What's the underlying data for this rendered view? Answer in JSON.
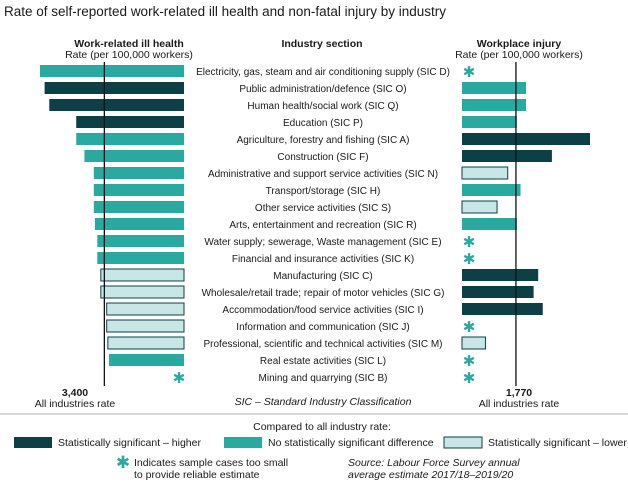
{
  "chart_data": {
    "type": "bar",
    "title": "Rate of self-reported work-related ill health and non-fatal injury by industry",
    "center_header": "Industry section",
    "left_panel": {
      "title": "Work-related ill health",
      "subtitle": "Rate (per 100,000 workers)",
      "reference_value": 3400,
      "reference_label": "3,400",
      "reference_caption": "All industries rate",
      "xlim": [
        0,
        7000
      ]
    },
    "right_panel": {
      "title": "Workplace injury",
      "subtitle": "Rate (per 100,000 workers)",
      "reference_value": 1770,
      "reference_label": "1,770",
      "reference_caption": "All industries rate",
      "xlim": [
        0,
        4200
      ]
    },
    "sic_note": "SIC – Standard Industry Classification",
    "categories": [
      "Electricity, gas, steam and air conditioning supply (SIC D)",
      "Public administration/defence (SIC O)",
      "Human health/social work (SIC Q)",
      "Education (SIC P)",
      "Agriculture, forestry and fishing (SIC A)",
      "Construction (SIC F)",
      "Administrative and support service activities (SIC N)",
      "Transport/storage (SIC H)",
      "Other service activities (SIC S)",
      "Arts, entertainment and recreation (SIC R)",
      "Water supply; sewerage, Waste management (SIC E)",
      "Financial and insurance activities (SIC K)",
      "Manufacturing (SIC C)",
      "Wholesale/retail trade; repair of motor vehicles (SIC G)",
      "Accommodation/food service activities (SIC I)",
      "Information and communication (SIC J)",
      "Professional, scientific and technical activities (SIC M)",
      "Real estate activities (SIC L)",
      "Mining and quarrying (SIC B)"
    ],
    "series": [
      {
        "name": "Work-related ill health",
        "values": [
          6150,
          5950,
          5750,
          4600,
          4600,
          4250,
          3850,
          3850,
          3850,
          3800,
          3700,
          3700,
          3550,
          3550,
          3300,
          3300,
          3250,
          3200,
          null
        ],
        "status": [
          "nsd",
          "higher",
          "higher",
          "higher",
          "nsd",
          "nsd",
          "nsd",
          "nsd",
          "nsd",
          "nsd",
          "nsd",
          "nsd",
          "lower",
          "lower",
          "lower",
          "lower",
          "lower",
          "nsd",
          "star"
        ]
      },
      {
        "name": "Workplace injury",
        "values": [
          null,
          2100,
          2100,
          1800,
          4200,
          2950,
          1500,
          1920,
          1150,
          1800,
          null,
          null,
          2500,
          2350,
          2650,
          null,
          770,
          null,
          null
        ],
        "status": [
          "star",
          "nsd",
          "nsd",
          "nsd",
          "higher",
          "higher",
          "lower",
          "nsd",
          "lower",
          "nsd",
          "star",
          "star",
          "higher",
          "higher",
          "higher",
          "star",
          "lower",
          "star",
          "star"
        ]
      }
    ],
    "legend": {
      "heading": "Compared to all industry rate:",
      "items": [
        {
          "key": "higher",
          "label": "Statistically significant – higher",
          "color": "#0d3f47"
        },
        {
          "key": "nsd",
          "label": "No statistically significant difference",
          "color": "#2aa9a0"
        },
        {
          "key": "lower",
          "label": "Statistically significant – lower",
          "color": "#c8e6e6"
        }
      ],
      "star_note": [
        "Indicates sample cases too small",
        "to provide reliable estimate"
      ]
    },
    "source": [
      "Source: Labour Force Survey annual",
      "average estimate 2017/18–2019/20"
    ],
    "colors": {
      "higher": "#0d3f47",
      "nsd": "#2aa9a0",
      "lower": "#c8e6e6",
      "lower_border": "#0d3f47",
      "star": "#2aa9a0"
    }
  }
}
